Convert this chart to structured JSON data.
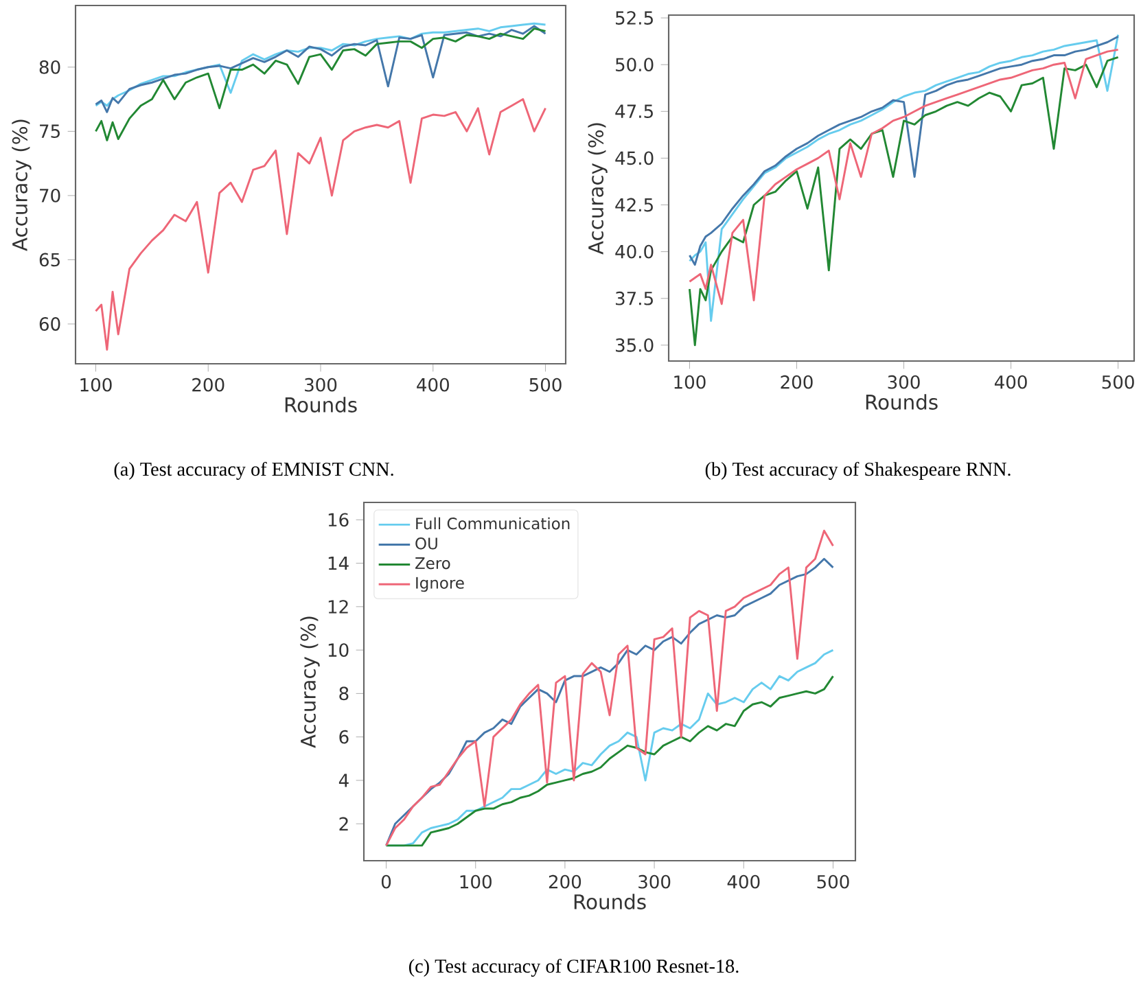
{
  "chart_data": [
    {
      "type": "line",
      "xlabel": "Rounds",
      "ylabel": "Accuracy (%)",
      "annotations": [
        "(a) Test accuracy of EMNIST CNN."
      ],
      "xlim": [
        82,
        518
      ],
      "ylim": [
        56.9,
        84.8
      ],
      "xticks": [
        100,
        200,
        300,
        400,
        500
      ],
      "yticks": [
        60,
        65,
        70,
        75,
        80
      ],
      "legend": false,
      "x": [
        100,
        105,
        110,
        115,
        120,
        130,
        140,
        150,
        160,
        170,
        180,
        190,
        200,
        210,
        220,
        230,
        240,
        250,
        260,
        270,
        280,
        290,
        300,
        310,
        320,
        330,
        340,
        350,
        360,
        370,
        380,
        390,
        400,
        410,
        420,
        430,
        440,
        450,
        460,
        470,
        480,
        490,
        500
      ],
      "series": [
        {
          "color": "#66ccee",
          "values": [
            77.0,
            77.3,
            77.0,
            77.5,
            77.8,
            78.2,
            78.7,
            79.0,
            79.3,
            79.3,
            79.6,
            79.8,
            80.0,
            80.2,
            78.0,
            80.5,
            81.0,
            80.6,
            81.0,
            81.3,
            81.2,
            81.5,
            81.5,
            81.3,
            81.8,
            81.7,
            82.0,
            82.2,
            82.3,
            82.4,
            82.2,
            82.6,
            82.7,
            82.7,
            82.8,
            82.9,
            83.0,
            82.8,
            83.1,
            83.2,
            83.3,
            83.4,
            83.3
          ]
        },
        {
          "color": "#4477aa",
          "values": [
            77.1,
            77.4,
            76.5,
            77.6,
            77.2,
            78.3,
            78.6,
            78.8,
            79.1,
            79.4,
            79.5,
            79.8,
            80.0,
            80.1,
            79.9,
            80.3,
            80.7,
            80.4,
            80.8,
            81.3,
            80.8,
            81.6,
            81.4,
            80.9,
            81.6,
            81.8,
            81.7,
            82.1,
            78.5,
            82.3,
            82.2,
            82.5,
            79.2,
            82.5,
            82.6,
            82.7,
            82.4,
            82.6,
            82.4,
            82.9,
            82.6,
            83.2,
            82.6
          ]
        },
        {
          "color": "#228833",
          "values": [
            75.0,
            75.8,
            74.3,
            75.7,
            74.4,
            76.0,
            77.0,
            77.5,
            79.0,
            77.5,
            78.8,
            79.2,
            79.5,
            76.8,
            79.8,
            79.8,
            80.2,
            79.5,
            80.5,
            80.2,
            78.7,
            80.8,
            81.0,
            79.8,
            81.3,
            81.4,
            80.9,
            81.8,
            81.9,
            82.0,
            82.0,
            81.5,
            82.2,
            82.3,
            82.0,
            82.5,
            82.4,
            82.2,
            82.6,
            82.4,
            82.2,
            83.0,
            82.8
          ]
        },
        {
          "color": "#ee6677",
          "values": [
            61.0,
            61.5,
            58.0,
            62.5,
            59.2,
            64.3,
            65.5,
            66.5,
            67.3,
            68.5,
            68.0,
            69.5,
            64.0,
            70.2,
            71.0,
            69.5,
            72.0,
            72.3,
            73.5,
            67.0,
            73.3,
            72.5,
            74.5,
            70.0,
            74.3,
            75.0,
            75.3,
            75.5,
            75.3,
            75.8,
            71.0,
            76.0,
            76.3,
            76.2,
            76.5,
            75.0,
            76.8,
            73.2,
            76.5,
            77.0,
            77.5,
            75.0,
            76.8
          ]
        }
      ]
    },
    {
      "type": "line",
      "xlabel": "Rounds",
      "ylabel": "Accuracy (%)",
      "annotations": [
        "(b) Test accuracy of Shakespeare RNN."
      ],
      "xlim": [
        80.5,
        515
      ],
      "ylim": [
        34.15,
        52.65
      ],
      "xticks": [
        100,
        200,
        300,
        400,
        500
      ],
      "yticks": [
        {
          "value": 35,
          "label": "35.0"
        },
        {
          "value": 37.5,
          "label": "37.5"
        },
        {
          "value": 40,
          "label": "40.0"
        },
        {
          "value": 42.5,
          "label": "42.5"
        },
        {
          "value": 45,
          "label": "45.0"
        },
        {
          "value": 47.5,
          "label": "47.5"
        },
        {
          "value": 50,
          "label": "50.0"
        },
        {
          "value": 52.5,
          "label": "52.5"
        }
      ],
      "legend": false,
      "x": [
        100,
        105,
        110,
        115,
        120,
        130,
        140,
        150,
        160,
        170,
        180,
        190,
        200,
        210,
        220,
        230,
        240,
        250,
        260,
        270,
        280,
        290,
        300,
        310,
        320,
        330,
        340,
        350,
        360,
        370,
        380,
        390,
        400,
        410,
        420,
        430,
        440,
        450,
        460,
        470,
        480,
        490,
        500
      ],
      "series": [
        {
          "color": "#66ccee",
          "values": [
            39.5,
            39.8,
            40.0,
            40.5,
            36.3,
            41.2,
            42.0,
            42.8,
            43.5,
            44.2,
            44.5,
            45.0,
            45.3,
            45.6,
            46.0,
            46.3,
            46.5,
            46.8,
            47.0,
            47.3,
            47.6,
            48.0,
            48.3,
            48.5,
            48.6,
            48.9,
            49.1,
            49.3,
            49.5,
            49.6,
            49.9,
            50.1,
            50.2,
            50.4,
            50.5,
            50.7,
            50.8,
            51.0,
            51.1,
            51.2,
            51.3,
            48.6,
            51.6
          ]
        },
        {
          "color": "#4477aa",
          "values": [
            39.8,
            39.3,
            40.3,
            40.8,
            41.0,
            41.5,
            42.3,
            43.0,
            43.6,
            44.3,
            44.6,
            45.1,
            45.5,
            45.8,
            46.2,
            46.5,
            46.8,
            47.0,
            47.2,
            47.5,
            47.7,
            48.1,
            48.0,
            44.0,
            48.4,
            48.6,
            48.9,
            49.1,
            49.2,
            49.4,
            49.6,
            49.8,
            49.9,
            50.0,
            50.2,
            50.3,
            50.5,
            50.5,
            50.7,
            50.8,
            51.0,
            51.2,
            51.5
          ]
        },
        {
          "color": "#228833",
          "values": [
            38.0,
            35.0,
            38.0,
            37.4,
            39.0,
            40.0,
            40.8,
            40.5,
            42.5,
            43.0,
            43.2,
            43.8,
            44.3,
            42.3,
            44.5,
            39.0,
            45.5,
            46.0,
            45.5,
            46.3,
            46.5,
            44.0,
            47.0,
            46.8,
            47.3,
            47.5,
            47.8,
            48.0,
            47.8,
            48.2,
            48.5,
            48.3,
            47.5,
            48.9,
            49.0,
            49.3,
            45.5,
            49.8,
            49.7,
            50.0,
            48.8,
            50.2,
            50.4
          ]
        },
        {
          "color": "#ee6677",
          "values": [
            38.4,
            38.6,
            38.8,
            38.0,
            39.3,
            37.2,
            41.0,
            41.7,
            37.4,
            43.0,
            43.6,
            44.0,
            44.4,
            44.7,
            45.0,
            45.4,
            42.8,
            45.8,
            44.0,
            46.3,
            46.6,
            47.0,
            47.2,
            47.5,
            47.8,
            48.0,
            48.2,
            48.4,
            48.6,
            48.8,
            49.0,
            49.2,
            49.3,
            49.5,
            49.7,
            49.8,
            50.0,
            50.1,
            48.2,
            50.3,
            50.5,
            50.7,
            50.8
          ]
        }
      ]
    },
    {
      "type": "line",
      "xlabel": "Rounds",
      "ylabel": "Accuracy (%)",
      "annotations": [
        "(c) Test accuracy of CIFAR100 Resnet-18."
      ],
      "xlim": [
        -25,
        525
      ],
      "ylim": [
        0.3,
        16.8
      ],
      "xticks": [
        0,
        100,
        200,
        300,
        400,
        500
      ],
      "yticks": [
        2,
        4,
        6,
        8,
        10,
        12,
        14,
        16
      ],
      "legend": "top left",
      "x": [
        0,
        10,
        20,
        30,
        40,
        50,
        60,
        70,
        80,
        90,
        100,
        110,
        120,
        130,
        140,
        150,
        160,
        170,
        180,
        190,
        200,
        210,
        220,
        230,
        240,
        250,
        260,
        270,
        280,
        290,
        300,
        310,
        320,
        330,
        340,
        350,
        360,
        370,
        380,
        390,
        400,
        410,
        420,
        430,
        440,
        450,
        460,
        470,
        480,
        490,
        500
      ],
      "series": [
        {
          "name": "Full Communication",
          "color": "#66ccee",
          "values": [
            1.0,
            1.0,
            1.0,
            1.1,
            1.6,
            1.8,
            1.9,
            2.0,
            2.2,
            2.6,
            2.6,
            2.8,
            3.0,
            3.2,
            3.6,
            3.6,
            3.8,
            4.0,
            4.5,
            4.3,
            4.5,
            4.4,
            4.8,
            4.7,
            5.2,
            5.6,
            5.8,
            6.2,
            6.0,
            4.0,
            6.2,
            6.4,
            6.3,
            6.6,
            6.4,
            6.8,
            8.0,
            7.5,
            7.6,
            7.8,
            7.6,
            8.2,
            8.5,
            8.2,
            8.8,
            8.6,
            9.0,
            9.2,
            9.4,
            9.8,
            10.0
          ]
        },
        {
          "name": "OU",
          "color": "#4477aa",
          "values": [
            1.0,
            2.0,
            2.4,
            2.8,
            3.2,
            3.6,
            3.9,
            4.3,
            5.0,
            5.8,
            5.8,
            6.2,
            6.4,
            6.8,
            6.6,
            7.4,
            7.8,
            8.2,
            8.0,
            7.6,
            8.6,
            8.8,
            8.8,
            9.0,
            9.2,
            9.0,
            9.4,
            10.0,
            9.8,
            10.2,
            10.0,
            10.4,
            10.6,
            10.3,
            10.8,
            11.2,
            11.4,
            11.6,
            11.5,
            11.6,
            12.0,
            12.2,
            12.4,
            12.6,
            13.0,
            13.2,
            13.4,
            13.5,
            13.8,
            14.2,
            13.8
          ]
        },
        {
          "name": "Zero",
          "color": "#228833",
          "values": [
            1.0,
            1.0,
            1.0,
            1.0,
            1.0,
            1.6,
            1.7,
            1.8,
            2.0,
            2.3,
            2.6,
            2.7,
            2.7,
            2.9,
            3.0,
            3.2,
            3.3,
            3.5,
            3.8,
            3.9,
            4.0,
            4.1,
            4.3,
            4.4,
            4.6,
            5.0,
            5.3,
            5.6,
            5.5,
            5.3,
            5.2,
            5.6,
            5.8,
            6.0,
            5.8,
            6.2,
            6.5,
            6.3,
            6.6,
            6.5,
            7.2,
            7.5,
            7.6,
            7.4,
            7.8,
            7.9,
            8.0,
            8.1,
            8.0,
            8.2,
            8.8
          ]
        },
        {
          "name": "Ignore",
          "color": "#ee6677",
          "values": [
            1.0,
            1.8,
            2.2,
            2.8,
            3.2,
            3.7,
            3.8,
            4.4,
            5.0,
            5.5,
            5.8,
            2.8,
            6.0,
            6.4,
            6.8,
            7.5,
            8.0,
            8.4,
            3.9,
            8.5,
            8.8,
            4.0,
            8.9,
            9.4,
            9.0,
            7.0,
            9.8,
            10.2,
            5.5,
            5.2,
            10.5,
            10.6,
            11.0,
            6.0,
            11.5,
            11.8,
            11.6,
            7.2,
            11.8,
            12.0,
            12.4,
            12.6,
            12.8,
            13.0,
            13.5,
            13.8,
            9.6,
            13.8,
            14.2,
            15.5,
            14.8
          ]
        }
      ]
    }
  ]
}
